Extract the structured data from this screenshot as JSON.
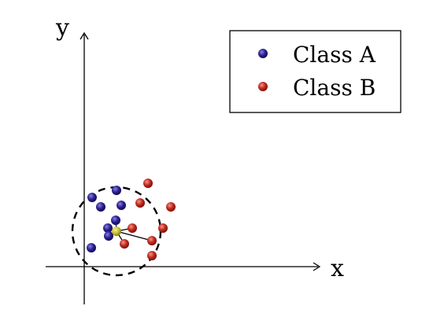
{
  "axes": {
    "x_label": "x",
    "y_label": "y"
  },
  "legend": {
    "entries": [
      {
        "label": "Class A",
        "class": "A"
      },
      {
        "label": "Class B",
        "class": "B"
      }
    ]
  },
  "colors": {
    "class_a": "#2a1f8f",
    "class_b": "#c0291f",
    "query": "#c9c236",
    "line": "#000000"
  },
  "points": {
    "class_a": [
      {
        "x": 1,
        "y": 8.8
      },
      {
        "x": 4.1,
        "y": 9.7
      },
      {
        "x": 2.1,
        "y": 7.6
      },
      {
        "x": 4.7,
        "y": 7.8
      },
      {
        "x": 4,
        "y": 5.9
      },
      {
        "x": 3,
        "y": 4.9
      },
      {
        "x": 3.1,
        "y": 3.9
      },
      {
        "x": 0.9,
        "y": 2.4
      }
    ],
    "class_b": [
      {
        "x": 8.1,
        "y": 10.6
      },
      {
        "x": 7.1,
        "y": 8.1
      },
      {
        "x": 11,
        "y": 7.6
      },
      {
        "x": 6.1,
        "y": 4.9
      },
      {
        "x": 10,
        "y": 4.9
      },
      {
        "x": 8.6,
        "y": 3.3
      },
      {
        "x": 5.1,
        "y": 2.9
      },
      {
        "x": 8.6,
        "y": 1.4
      }
    ],
    "query": {
      "x": 4.1,
      "y": 4.5
    },
    "neighbors": [
      {
        "class": "A",
        "index": 4
      },
      {
        "class": "A",
        "index": 5
      },
      {
        "class": "A",
        "index": 6
      },
      {
        "class": "B",
        "index": 3
      },
      {
        "class": "B",
        "index": 6
      },
      {
        "class": "B",
        "index": 5
      }
    ],
    "radius": 2.8
  }
}
